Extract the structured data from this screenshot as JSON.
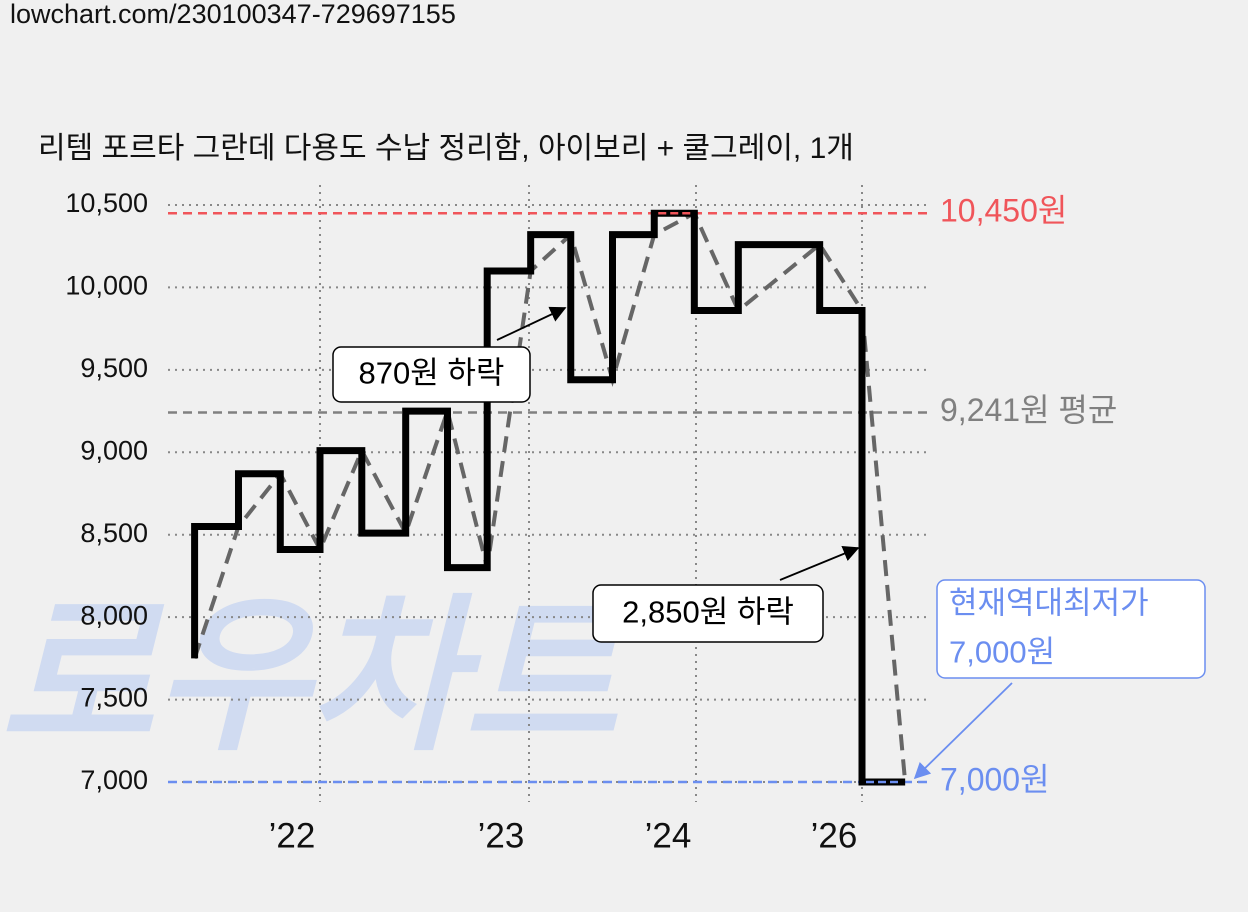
{
  "source": "lowchart.com/230100347-729697155",
  "chart_data": {
    "type": "step",
    "title": "리템 포르타 그란데 다용도 수납 정리함, 아이보리 + 쿨그레이, 1개",
    "watermark": "로우차트",
    "series": [
      {
        "color": "#000000",
        "x": [
          2021.4,
          2021.4,
          2021.61,
          2021.81,
          2022.0,
          2022.2,
          2022.41,
          2022.61,
          2022.8,
          2023.01,
          2023.25,
          2023.5,
          2023.75,
          2023.99,
          2024.51,
          2025.49,
          2026.0,
          2026.52
        ],
        "values": [
          7750,
          8550,
          8870,
          8410,
          9010,
          8510,
          9250,
          8300,
          10100,
          10320,
          9440,
          10320,
          10450,
          9860,
          10260,
          9860,
          7000,
          7000
        ]
      },
      {
        "color": "#666666",
        "dashed": true,
        "x": [
          2021.4,
          2021.61,
          2021.81,
          2022.0,
          2022.2,
          2022.41,
          2022.61,
          2022.8,
          2023.01,
          2023.25,
          2023.5,
          2023.75,
          2023.99,
          2024.51,
          2025.49,
          2026.0,
          2026.52
        ],
        "values": [
          7750,
          8550,
          8870,
          8410,
          9010,
          8510,
          9250,
          8300,
          10100,
          10320,
          9440,
          10320,
          10450,
          9860,
          10260,
          9860,
          7000
        ]
      }
    ],
    "ylim": [
      7000,
      10500
    ],
    "yticks": [
      {
        "value": 7000,
        "label": "7,000"
      },
      {
        "value": 7500,
        "label": "7,500"
      },
      {
        "value": 8000,
        "label": "8,000"
      },
      {
        "value": 8500,
        "label": "8,500"
      },
      {
        "value": 9000,
        "label": "9,000"
      },
      {
        "value": 9500,
        "label": "9,500"
      },
      {
        "value": 10000,
        "label": "10,000"
      },
      {
        "value": 10500,
        "label": "10,500"
      }
    ],
    "xticks": [
      {
        "value": 2022,
        "label": "’22"
      },
      {
        "value": 2023,
        "label": "’23"
      },
      {
        "value": 2024,
        "label": "’24"
      },
      {
        "value": 2026,
        "label": "’26"
      }
    ],
    "grid": true,
    "reference_lines": [
      {
        "value": 10450,
        "label": "10,450원",
        "color": "#f0555a"
      },
      {
        "value": 9241,
        "label": "9,241원 평균",
        "color": "#808080"
      },
      {
        "value": 7000,
        "label": "7,000원",
        "color": "#6b8ef0"
      }
    ],
    "annotations": [
      {
        "lines": [
          "870원 하락"
        ],
        "color": "#000000"
      },
      {
        "lines": [
          "2,850원 하락"
        ],
        "color": "#000000"
      },
      {
        "lines": [
          "현재역대최저가",
          "7,000원"
        ],
        "color": "#6b8ef0"
      }
    ]
  }
}
